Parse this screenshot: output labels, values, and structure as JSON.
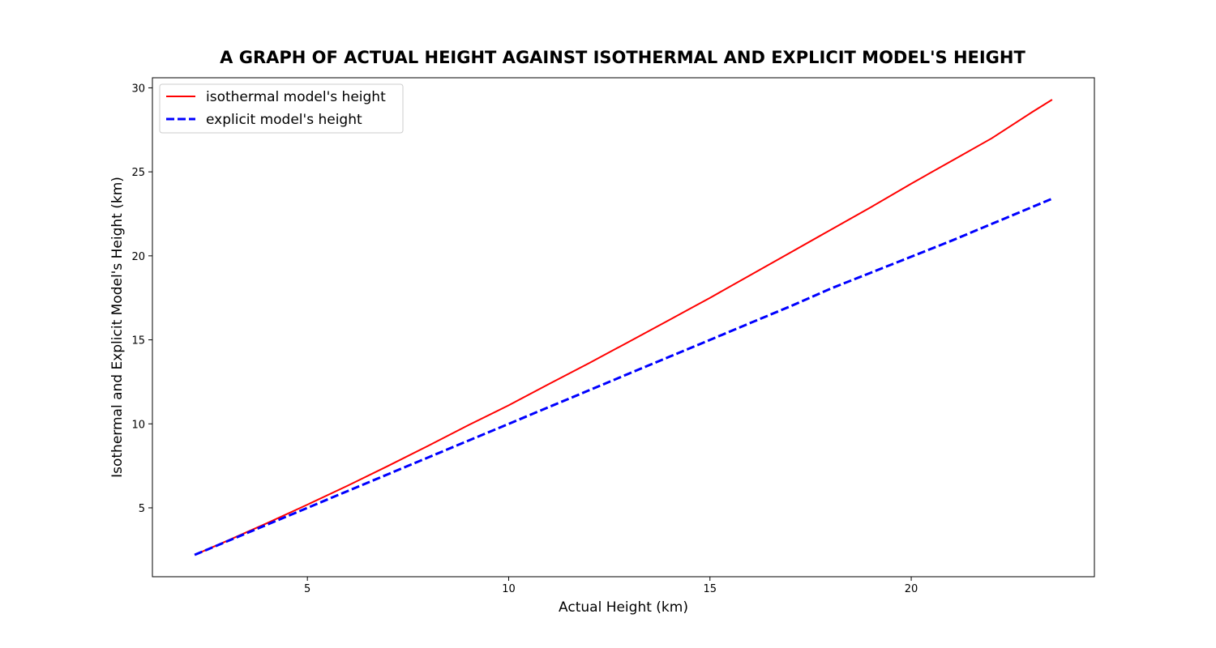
{
  "chart_data": {
    "type": "line",
    "title": "A GRAPH OF ACTUAL HEIGHT AGAINST ISOTHERMAL AND EXPLICIT MODEL'S HEIGHT",
    "xlabel": "Actual Height (km)",
    "ylabel": "Isothermal and Explicit Model's Height (km)",
    "xlim": [
      1.15,
      24.55
    ],
    "ylim": [
      0.9,
      30.6
    ],
    "xticks": [
      5,
      10,
      15,
      20
    ],
    "yticks": [
      5,
      10,
      15,
      20,
      25,
      30
    ],
    "grid": false,
    "legend_position": "top-left",
    "series": [
      {
        "name": "isothermal model's height",
        "color": "#ff0000",
        "style": "solid",
        "x": [
          2.2,
          3,
          4,
          5,
          6,
          7,
          8,
          9,
          10,
          11,
          12,
          13,
          14,
          15,
          16,
          17,
          18,
          19,
          20,
          21,
          22,
          23,
          23.5
        ],
        "y": [
          2.2,
          3.03,
          4.09,
          5.19,
          6.32,
          7.49,
          8.69,
          9.92,
          11.1,
          12.37,
          13.62,
          14.9,
          16.2,
          17.5,
          18.85,
          20.2,
          21.55,
          22.9,
          24.3,
          25.65,
          27.0,
          28.55,
          29.3
        ]
      },
      {
        "name": "explicit model's height",
        "color": "#0000ff",
        "style": "dashed",
        "x": [
          2.2,
          3,
          4,
          5,
          6,
          7,
          8,
          9,
          10,
          11,
          12,
          13,
          14,
          15,
          16,
          17,
          18,
          19,
          20,
          21,
          22,
          23,
          23.5
        ],
        "y": [
          2.2,
          3.0,
          4.0,
          5.0,
          6.0,
          7.0,
          8.0,
          9.0,
          10.0,
          11.0,
          12.0,
          13.0,
          14.0,
          15.0,
          16.0,
          17.0,
          18.05,
          19.0,
          19.95,
          20.9,
          21.9,
          22.9,
          23.4
        ]
      }
    ]
  }
}
